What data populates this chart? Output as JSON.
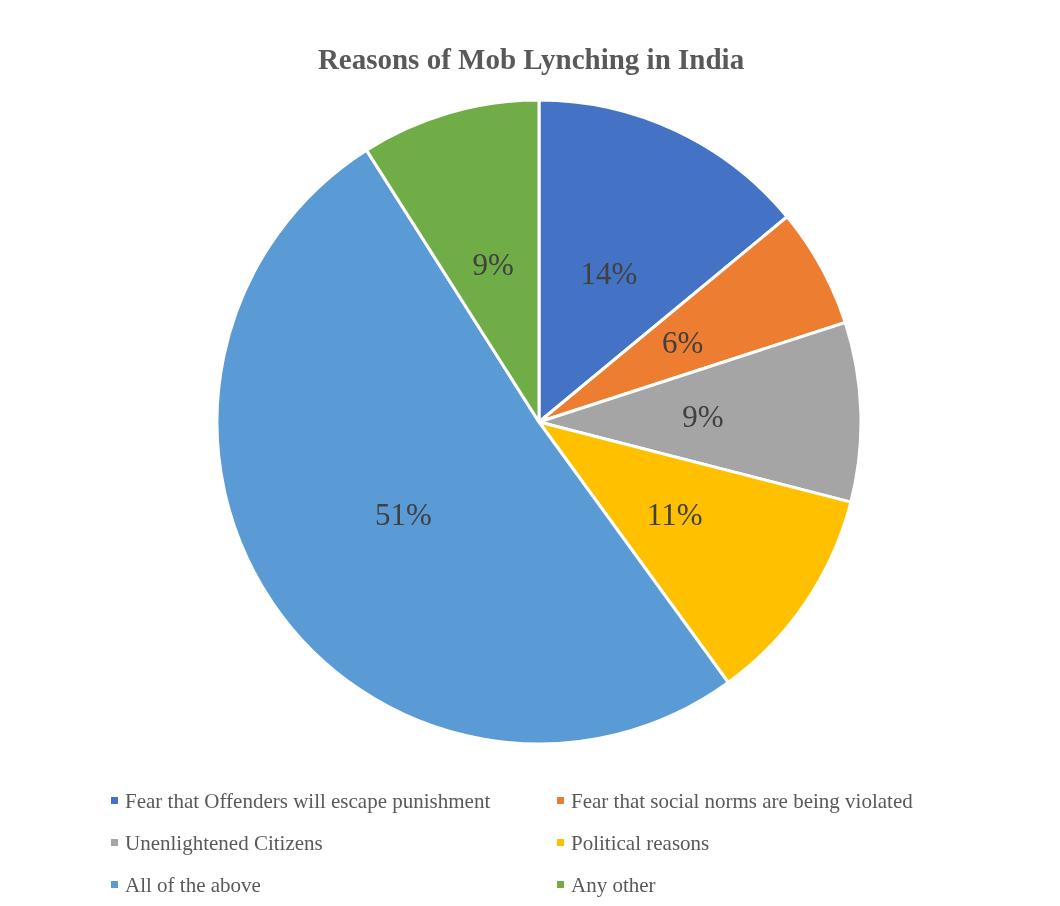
{
  "chart_data": {
    "type": "pie",
    "title": "Reasons of Mob Lynching in India",
    "categories": [
      "Fear that Offenders will escape punishment",
      "Fear that social norms are being violated",
      "Unenlightened Citizens",
      "Political reasons",
      "All of the above",
      "Any other"
    ],
    "values": [
      14,
      6,
      9,
      11,
      51,
      9
    ],
    "colors": [
      "#4472c4",
      "#ed7d31",
      "#a5a5a5",
      "#ffc000",
      "#5b9bd5",
      "#70ad47"
    ],
    "value_labels": [
      "14%",
      "6%",
      "9%",
      "11%",
      "51%",
      "9%"
    ],
    "legend": "bottom"
  }
}
